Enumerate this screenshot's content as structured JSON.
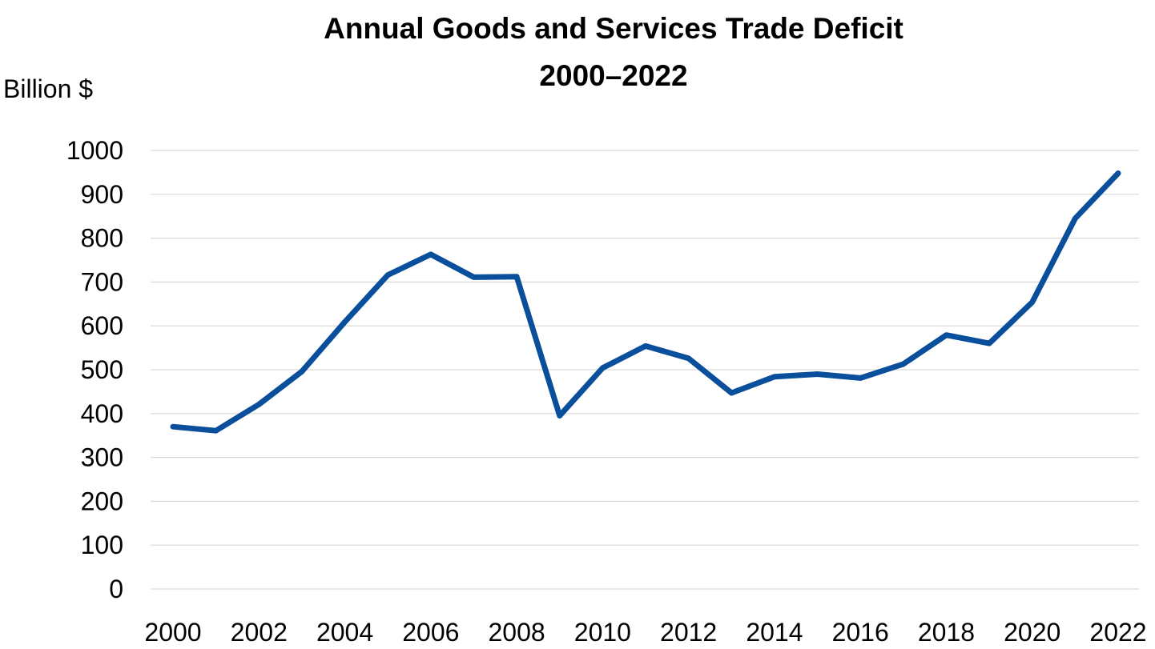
{
  "chart_data": {
    "type": "line",
    "title": "Annual Goods and Services Trade Deficit",
    "subtitle": "2000–2022",
    "ylabel": "Billion $",
    "xlabel": "",
    "ylim": [
      0,
      1000
    ],
    "y_ticks": [
      "0",
      "100",
      "200",
      "300",
      "400",
      "500",
      "600",
      "700",
      "800",
      "900",
      "1000"
    ],
    "x_tick_labels": [
      "2000",
      "2002",
      "2004",
      "2006",
      "2008",
      "2010",
      "2012",
      "2014",
      "2016",
      "2018",
      "2020",
      "2022"
    ],
    "grid": true,
    "legend": "none",
    "x": [
      2000,
      2001,
      2002,
      2003,
      2004,
      2005,
      2006,
      2007,
      2008,
      2009,
      2010,
      2011,
      2012,
      2013,
      2014,
      2015,
      2016,
      2017,
      2018,
      2019,
      2020,
      2021,
      2022
    ],
    "series": [
      {
        "color": "#0a4f9c",
        "values": [
          370,
          361,
          421,
          496,
          609,
          716,
          763,
          711,
          712,
          395,
          504,
          554,
          526,
          447,
          484,
          490,
          481,
          513,
          579,
          560,
          654,
          845,
          948
        ]
      }
    ]
  }
}
